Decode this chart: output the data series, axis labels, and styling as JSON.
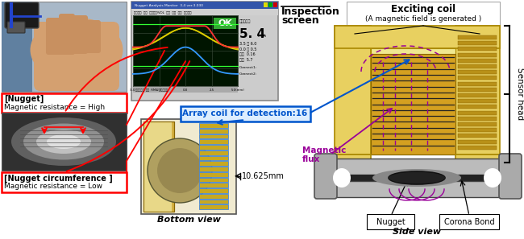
{
  "figsize": [
    6.5,
    2.97
  ],
  "dpi": 100,
  "bg_color": "#ffffff",
  "labels": {
    "inspection_screen_1": "Inspection",
    "inspection_screen_2": "screen",
    "exciting_coil": "Exciting coil",
    "exciting_coil_sub": "(A magnetic field is generated )",
    "sensor_head": "Sensor head",
    "array_coil": "Array coil for detection:16",
    "magnetic_flux_1": "Magnetic",
    "magnetic_flux_2": "flux",
    "dimension": "10.625mm",
    "bottom_view": "Bottom view",
    "side_view": "Side view",
    "nugget": "Nugget",
    "corona_bond": "Corona Bond",
    "nugget_box1_line1": "[Nugget]",
    "nugget_box1_line2": "Magnetic resistance = High",
    "nugget_box2_line1": "[Nugget circumference ]",
    "nugget_box2_line2": "Magnetic resistance = Low",
    "ok_text": "OK",
    "reading_big": "5. 4",
    "reading_unit": "mm"
  },
  "colors": {
    "nugget_box_border": "#ff0000",
    "array_coil_box_border": "#0055cc",
    "array_coil_text": "#0055cc",
    "magnetic_flux_text": "#990099",
    "exciting_coil_bg": "#e8d060",
    "exciting_coil_dark": "#c8a020",
    "coil_stripe_dark": "#b89018",
    "inner_bg": "#f0e890",
    "detection_coil_stripe": "#4488dd",
    "detection_coil_bg": "#ddeeff",
    "dashed_purple": "#990099",
    "red_line": "#ff0000",
    "blue_arrow": "#0055cc",
    "ok_green": "#33aa33",
    "screen_bg": "#001500",
    "screen_frame": "#888888",
    "nugget_dark": "#222222",
    "steel_gray": "#888888",
    "steel_light": "#bbbbbb",
    "plate_dark": "#555555",
    "bottom_view_border": "#555555",
    "bottom_view_bg": "#f0ead0",
    "bv_yellow": "#d4b040",
    "bv_inner": "#e8d888",
    "bv_circle": "#b0a060",
    "bv_det_bg": "#4488dd",
    "bv_det_stripe": "#c8a820",
    "callout_bg": "#ffffff",
    "callout_border": "#000000"
  }
}
